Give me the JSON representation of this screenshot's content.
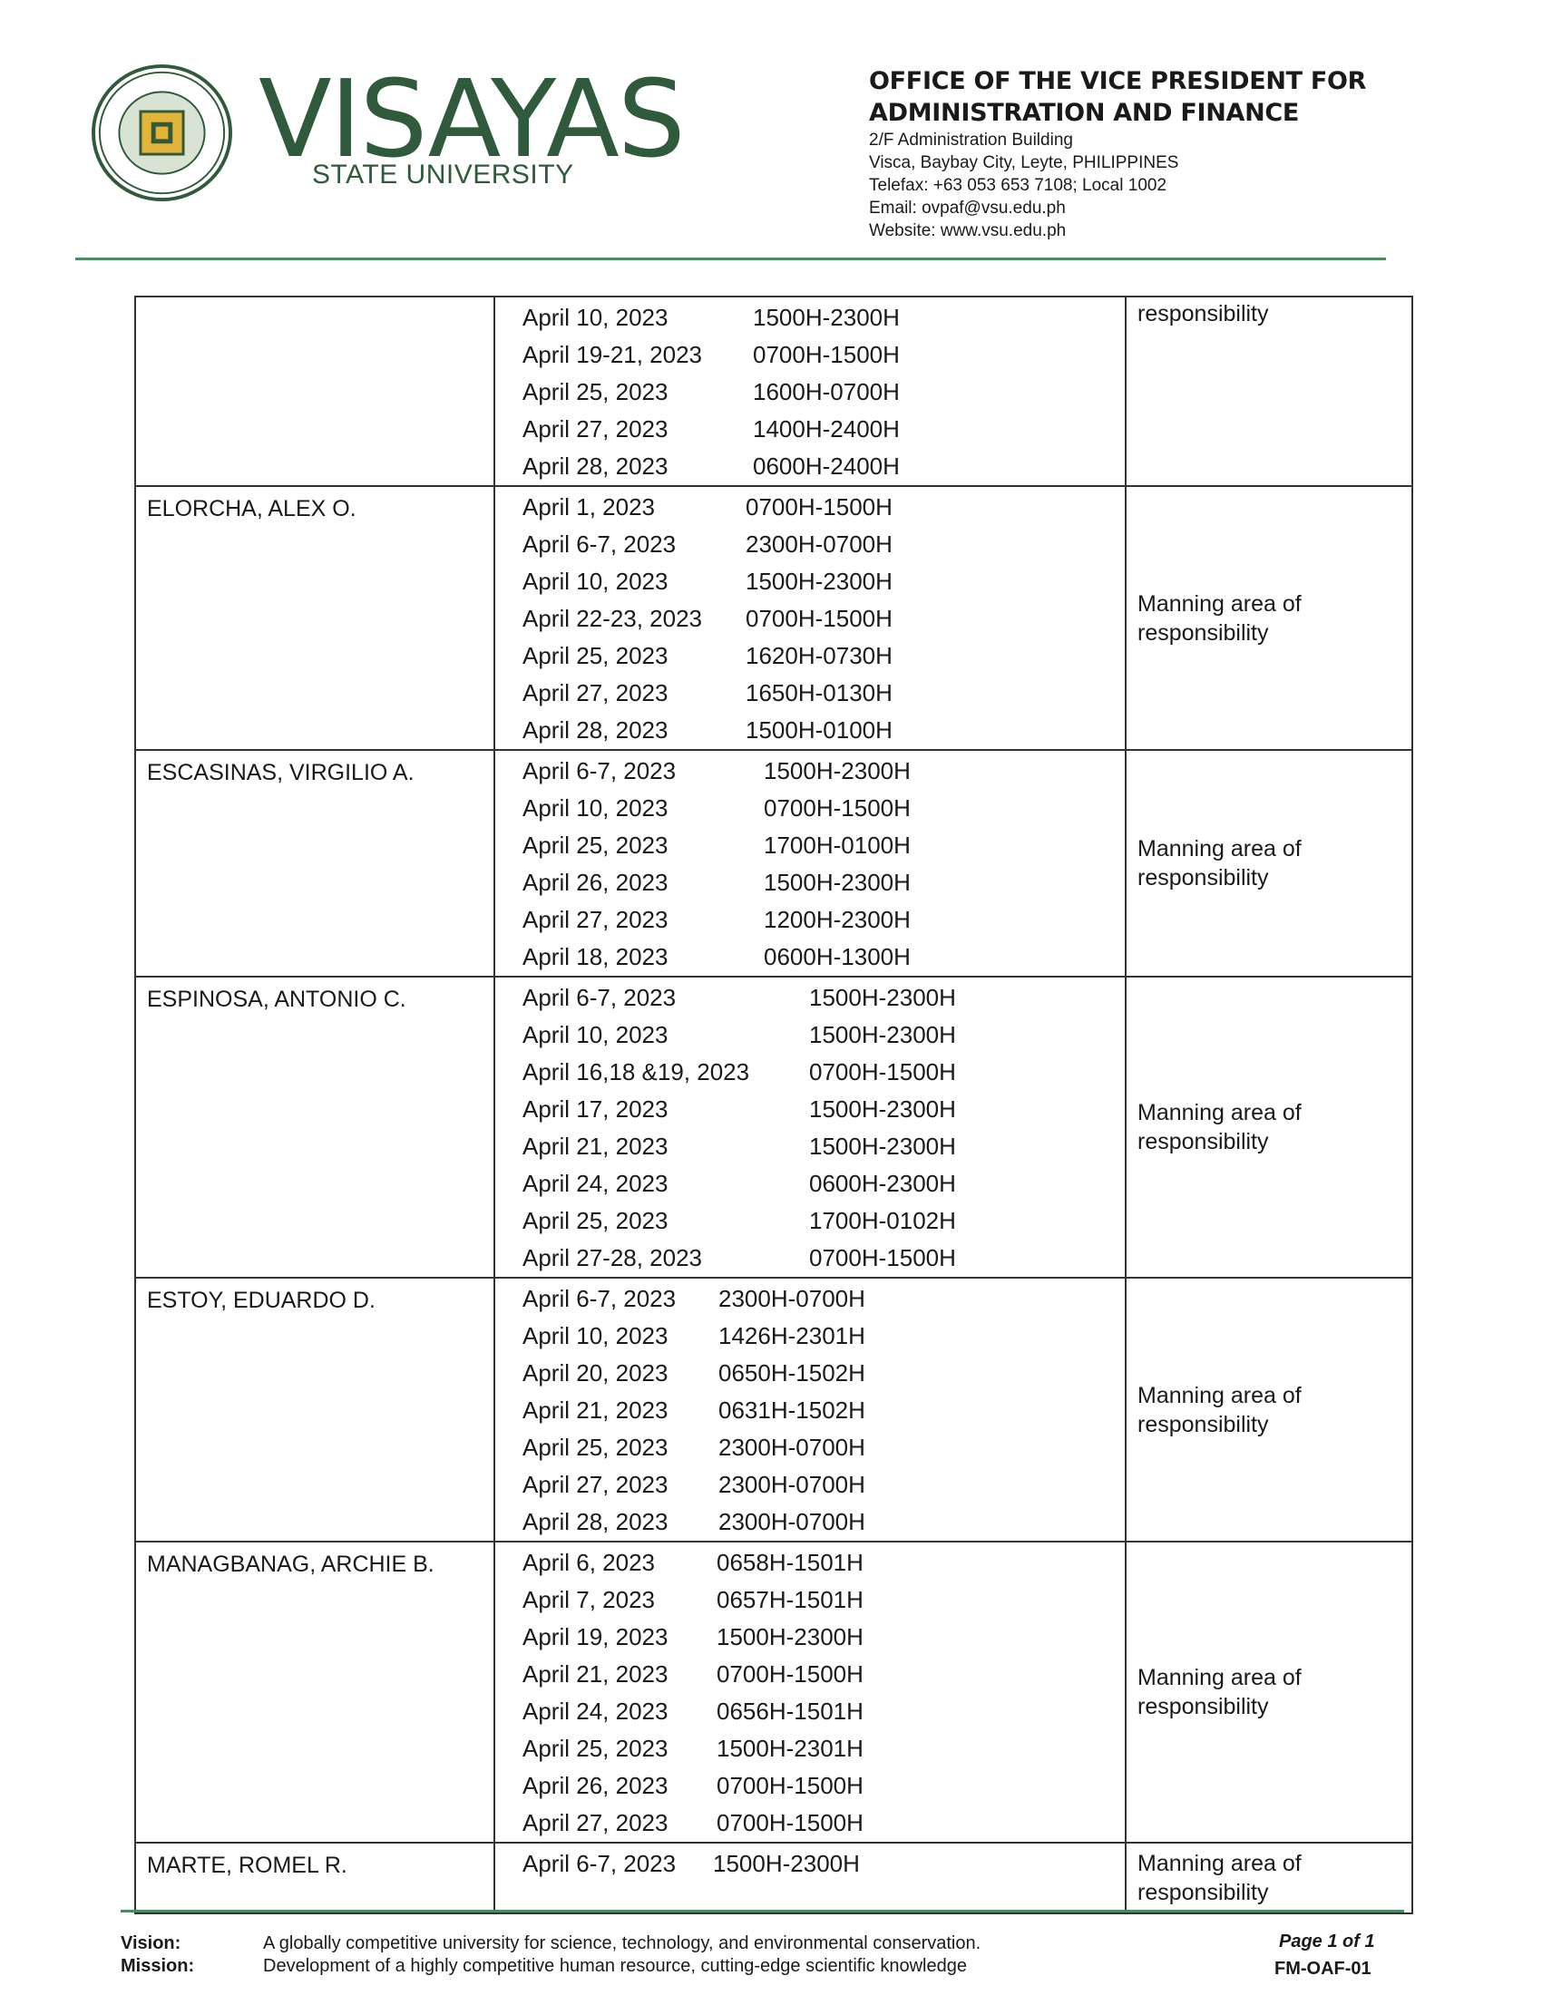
{
  "header": {
    "brand_name": "VISAYAS",
    "brand_sub": "STATE UNIVERSITY",
    "seal_text": "VISAYAS STATE UNIVERSITY 1924",
    "office_line1": "OFFICE OF THE VICE PRESIDENT FOR",
    "office_line2": "ADMINISTRATION AND FINANCE",
    "address1": "2/F Administration Building",
    "address2": "Visca, Baybay City, Leyte, PHILIPPINES",
    "telefax": "Telefax: +63 053 653 7108; Local 1002",
    "email": "Email: ovpaf@vsu.edu.ph",
    "website": "Website: www.vsu.edu.ph",
    "brand_color": "#2f5a3c"
  },
  "rows": [
    {
      "name": "",
      "remarks": "responsibility",
      "entries": [
        [
          "April 10, 2023",
          "1500H-2300H"
        ],
        [
          "April 19-21, 2023",
          "0700H-1500H"
        ],
        [
          "April 25, 2023",
          "1600H-0700H"
        ],
        [
          "April 27, 2023",
          "1400H-2400H"
        ],
        [
          "April 28, 2023",
          "0600H-2400H"
        ]
      ]
    },
    {
      "name": "ELORCHA, ALEX O.",
      "remarks": "Manning area of responsibility",
      "entries": [
        [
          "April 1, 2023",
          "0700H-1500H"
        ],
        [
          "April 6-7, 2023",
          "2300H-0700H"
        ],
        [
          "April 10, 2023",
          "1500H-2300H"
        ],
        [
          "April 22-23, 2023",
          "0700H-1500H"
        ],
        [
          "April 25, 2023",
          "1620H-0730H"
        ],
        [
          "April 27, 2023",
          "1650H-0130H"
        ],
        [
          "April 28, 2023",
          "1500H-0100H"
        ]
      ]
    },
    {
      "name": "ESCASINAS, VIRGILIO A.",
      "remarks": "Manning area of responsibility",
      "entries": [
        [
          "April 6-7, 2023",
          "1500H-2300H"
        ],
        [
          "April 10, 2023",
          "0700H-1500H"
        ],
        [
          "April 25, 2023",
          "1700H-0100H"
        ],
        [
          "April 26, 2023",
          "1500H-2300H"
        ],
        [
          "April 27, 2023",
          "1200H-2300H"
        ],
        [
          "April 18, 2023",
          "0600H-1300H"
        ]
      ]
    },
    {
      "name": "ESPINOSA, ANTONIO C.",
      "remarks": "Manning area of responsibility",
      "entries": [
        [
          "April 6-7, 2023",
          "1500H-2300H"
        ],
        [
          "April 10, 2023",
          "1500H-2300H"
        ],
        [
          "April 16,18 &19, 2023",
          "0700H-1500H"
        ],
        [
          "April 17, 2023",
          "1500H-2300H"
        ],
        [
          "April 21, 2023",
          "1500H-2300H"
        ],
        [
          "April 24, 2023",
          "0600H-2300H"
        ],
        [
          "April 25, 2023",
          "1700H-0102H"
        ],
        [
          "April 27-28, 2023",
          "0700H-1500H"
        ]
      ]
    },
    {
      "name": "ESTOY, EDUARDO D.",
      "remarks": "Manning area of responsibility",
      "entries": [
        [
          "April 6-7, 2023",
          "2300H-0700H"
        ],
        [
          "April 10, 2023",
          "1426H-2301H"
        ],
        [
          "April 20, 2023",
          "0650H-1502H"
        ],
        [
          "April 21, 2023",
          "0631H-1502H"
        ],
        [
          "April 25, 2023",
          "2300H-0700H"
        ],
        [
          "April 27, 2023",
          "2300H-0700H"
        ],
        [
          "April 28, 2023",
          "2300H-0700H"
        ]
      ]
    },
    {
      "name": "MANAGBANAG, ARCHIE B.",
      "remarks": "Manning area of responsibility",
      "entries": [
        [
          "April 6, 2023",
          "0658H-1501H"
        ],
        [
          "April 7, 2023",
          "0657H-1501H"
        ],
        [
          "April 19, 2023",
          "1500H-2300H"
        ],
        [
          "April 21, 2023",
          "0700H-1500H"
        ],
        [
          "April 24, 2023",
          "0656H-1501H"
        ],
        [
          "April 25, 2023",
          "1500H-2301H"
        ],
        [
          "April 26, 2023",
          "0700H-1500H"
        ],
        [
          "April 27, 2023",
          "0700H-1500H"
        ]
      ]
    },
    {
      "name": "MARTE, ROMEL R.",
      "remarks": "Manning area of responsibility",
      "entries": [
        [
          "April 6-7, 2023",
          "1500H-2300H"
        ]
      ]
    }
  ],
  "footer": {
    "vision_label": "Vision:",
    "vision_text": "A globally competitive university for science, technology, and environmental conservation.",
    "mission_label": "Mission:",
    "mission_text": "Development of a highly competitive human resource, cutting-edge scientific knowledge",
    "page": "Page 1 of 1",
    "form_code": "FM-OAF-01"
  }
}
